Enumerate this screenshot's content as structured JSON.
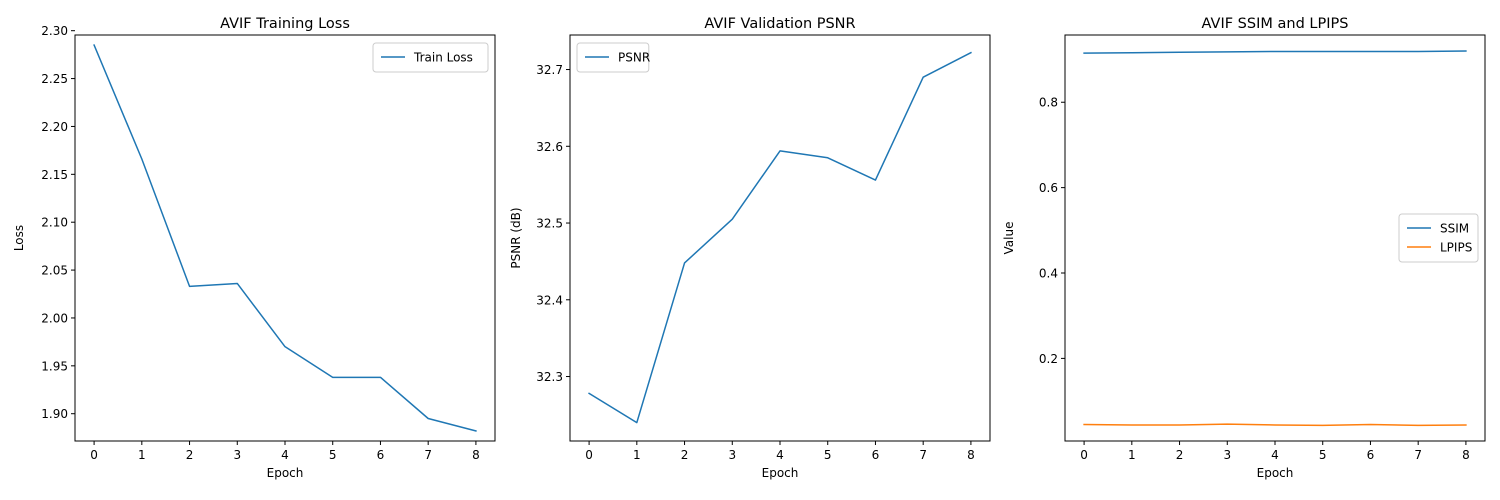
{
  "colors": {
    "series1": "#1f77b4",
    "series2": "#ff7f0e",
    "axis": "#000000",
    "legend_border": "#cccccc"
  },
  "chart_data": [
    {
      "type": "line",
      "title": "AVIF Training Loss",
      "xlabel": "Epoch",
      "ylabel": "Loss",
      "x": [
        0,
        1,
        2,
        3,
        4,
        5,
        6,
        7,
        8
      ],
      "xlim": [
        -0.4,
        8.4
      ],
      "ylim": [
        1.8715,
        2.2955
      ],
      "xticks": [
        "0",
        "1",
        "2",
        "3",
        "4",
        "5",
        "6",
        "7",
        "8"
      ],
      "yticks": [
        {
          "value": 1.9,
          "label": "1.90"
        },
        {
          "value": 1.95,
          "label": "1.95"
        },
        {
          "value": 2.0,
          "label": "2.00"
        },
        {
          "value": 2.05,
          "label": "2.05"
        },
        {
          "value": 2.1,
          "label": "2.10"
        },
        {
          "value": 2.15,
          "label": "2.15"
        },
        {
          "value": 2.2,
          "label": "2.20"
        },
        {
          "value": 2.25,
          "label": "2.25"
        },
        {
          "value": 2.3,
          "label": "2.30"
        }
      ],
      "grid": false,
      "legend_position": "upper right",
      "series": [
        {
          "name": "Train Loss",
          "color": "#1f77b4",
          "values": [
            2.285,
            2.166,
            2.033,
            2.036,
            1.97,
            1.938,
            1.938,
            1.895,
            1.882
          ]
        }
      ]
    },
    {
      "type": "line",
      "title": "AVIF Validation PSNR",
      "xlabel": "Epoch",
      "ylabel": "PSNR (dB)",
      "x": [
        0,
        1,
        2,
        3,
        4,
        5,
        6,
        7,
        8
      ],
      "xlim": [
        -0.4,
        8.4
      ],
      "ylim": [
        32.216,
        32.745
      ],
      "xticks": [
        "0",
        "1",
        "2",
        "3",
        "4",
        "5",
        "6",
        "7",
        "8"
      ],
      "yticks": [
        {
          "value": 32.3,
          "label": "32.3"
        },
        {
          "value": 32.4,
          "label": "32.4"
        },
        {
          "value": 32.5,
          "label": "32.5"
        },
        {
          "value": 32.6,
          "label": "32.6"
        },
        {
          "value": 32.7,
          "label": "32.7"
        }
      ],
      "grid": false,
      "legend_position": "upper left",
      "series": [
        {
          "name": "PSNR",
          "color": "#1f77b4",
          "values": [
            32.278,
            32.24,
            32.448,
            32.505,
            32.594,
            32.585,
            32.556,
            32.69,
            32.722
          ]
        }
      ]
    },
    {
      "type": "line",
      "title": "AVIF SSIM and LPIPS",
      "xlabel": "Epoch",
      "ylabel": "Value",
      "x": [
        0,
        1,
        2,
        3,
        4,
        5,
        6,
        7,
        8
      ],
      "xlim": [
        -0.4,
        8.4
      ],
      "ylim": [
        0.0065,
        0.9575
      ],
      "xticks": [
        "0",
        "1",
        "2",
        "3",
        "4",
        "5",
        "6",
        "7",
        "8"
      ],
      "yticks": [
        {
          "value": 0.2,
          "label": "0.2"
        },
        {
          "value": 0.4,
          "label": "0.4"
        },
        {
          "value": 0.6,
          "label": "0.6"
        },
        {
          "value": 0.8,
          "label": "0.8"
        }
      ],
      "grid": false,
      "legend_position": "center right",
      "series": [
        {
          "name": "SSIM",
          "color": "#1f77b4",
          "values": [
            0.915,
            0.916,
            0.917,
            0.918,
            0.919,
            0.919,
            0.919,
            0.919,
            0.92
          ]
        },
        {
          "name": "LPIPS",
          "color": "#ff7f0e",
          "values": [
            0.045,
            0.044,
            0.044,
            0.046,
            0.044,
            0.043,
            0.045,
            0.043,
            0.044
          ]
        }
      ]
    }
  ]
}
